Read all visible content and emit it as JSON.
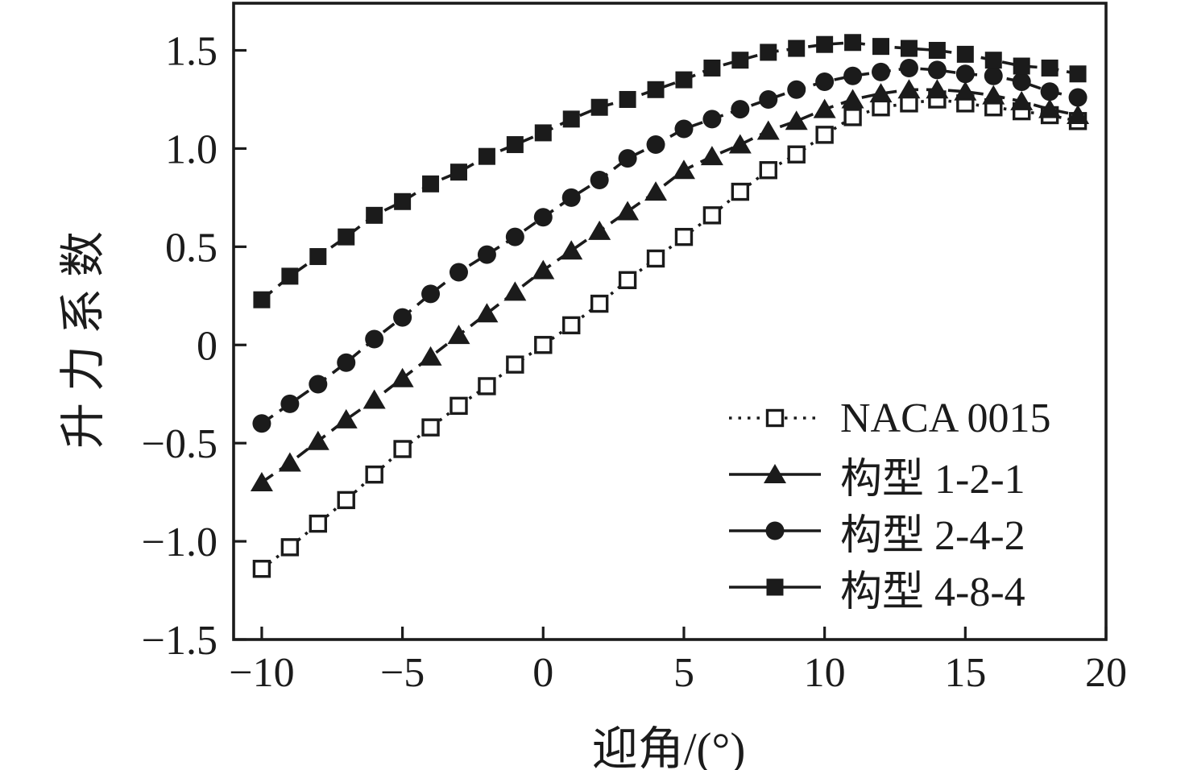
{
  "figure": {
    "background": "#ffffff",
    "ink": "#1b1b1b"
  },
  "chart_data": {
    "type": "line",
    "title": "",
    "xlabel": "迎角/(°)",
    "ylabel": "升力系数",
    "grid": false,
    "legend_position": "inside-lower-right",
    "xlim": [
      -11,
      20
    ],
    "ylim": [
      -1.5,
      1.74
    ],
    "x_ticks": [
      -10,
      -5,
      0,
      5,
      10,
      15,
      20
    ],
    "x_tick_labels": [
      "−10",
      "−5",
      "0",
      "5",
      "10",
      "15",
      "20"
    ],
    "y_ticks": [
      -1.5,
      -1.0,
      -0.5,
      0,
      0.5,
      1.0,
      1.5
    ],
    "y_tick_labels": [
      "−1.5",
      "−1.0",
      "−0.5",
      "0",
      "0.5",
      "1.0",
      "1.5"
    ],
    "x": [
      -10,
      -9,
      -8,
      -7,
      -6,
      -5,
      -4,
      -3,
      -2,
      -1,
      0,
      1,
      2,
      3,
      4,
      5,
      6,
      7,
      8,
      9,
      10,
      11,
      12,
      13,
      14,
      15,
      16,
      17,
      18,
      19
    ],
    "series": [
      {
        "name": "NACA 0015",
        "marker": "open-square",
        "line": "dotted",
        "values": [
          -1.14,
          -1.03,
          -0.91,
          -0.79,
          -0.66,
          -0.53,
          -0.42,
          -0.31,
          -0.21,
          -0.1,
          0.0,
          0.1,
          0.21,
          0.33,
          0.44,
          0.55,
          0.66,
          0.78,
          0.89,
          0.97,
          1.07,
          1.16,
          1.21,
          1.23,
          1.25,
          1.23,
          1.21,
          1.19,
          1.17,
          1.14
        ]
      },
      {
        "name": "构型 1-2-1",
        "marker": "filled-triangle",
        "line": "dashed",
        "values": [
          -0.7,
          -0.6,
          -0.49,
          -0.38,
          -0.28,
          -0.17,
          -0.06,
          0.05,
          0.16,
          0.27,
          0.38,
          0.48,
          0.58,
          0.68,
          0.78,
          0.89,
          0.96,
          1.02,
          1.09,
          1.14,
          1.2,
          1.25,
          1.28,
          1.3,
          1.3,
          1.29,
          1.27,
          1.24,
          1.2,
          1.17
        ]
      },
      {
        "name": "构型 2-4-2",
        "marker": "filled-circle",
        "line": "dashed",
        "values": [
          -0.4,
          -0.3,
          -0.2,
          -0.09,
          0.03,
          0.14,
          0.26,
          0.37,
          0.46,
          0.55,
          0.65,
          0.75,
          0.84,
          0.95,
          1.02,
          1.1,
          1.15,
          1.2,
          1.25,
          1.3,
          1.34,
          1.37,
          1.39,
          1.41,
          1.4,
          1.38,
          1.37,
          1.34,
          1.29,
          1.26
        ]
      },
      {
        "name": "构型 4-8-4",
        "marker": "filled-square",
        "line": "dashed",
        "values": [
          0.23,
          0.35,
          0.45,
          0.55,
          0.66,
          0.73,
          0.82,
          0.88,
          0.96,
          1.02,
          1.08,
          1.15,
          1.21,
          1.25,
          1.3,
          1.35,
          1.41,
          1.45,
          1.49,
          1.51,
          1.53,
          1.54,
          1.52,
          1.51,
          1.5,
          1.48,
          1.45,
          1.42,
          1.41,
          1.38
        ]
      }
    ]
  }
}
